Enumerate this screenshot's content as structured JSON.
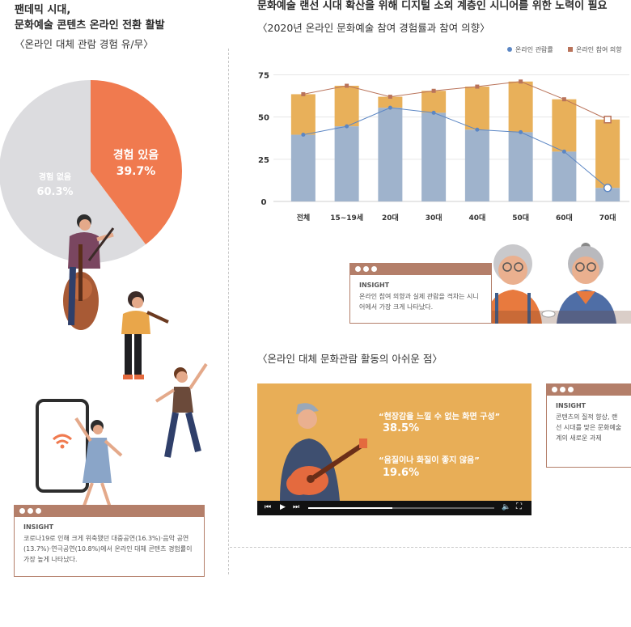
{
  "left": {
    "title_line1": "팬데믹 시대,",
    "title_line2": "문화예술 콘텐츠 온라인 전환 활발",
    "subtitle": "〈온라인 대체 관람 경험 유/무〉",
    "insight": {
      "heading": "INSIGHT",
      "body": "코로나19로 인해 크게 위축됐던 대중공연(16.3%)·음악 공연(13.7%)·연극공연(10.8%)에서 온라인 대체 콘텐츠 경험률이 가장 높게 나타났다."
    }
  },
  "right_top": {
    "title": "문화예술 랜선 시대 확산을 위해 디지털 소외 계층인 시니어를 위한 노력이 필요",
    "subtitle": "〈2020년 온라인 문화예술 참여 경험률과 참여 의향〉",
    "insight": {
      "heading": "INSIGHT",
      "body": "온라인 참여 의향과 실제 관람을 격차는 시니어에서 가장 크게 나타났다."
    }
  },
  "right_bottom": {
    "subtitle": "〈온라인 대체 문화관람 활동의 아쉬운 점〉",
    "quote1": "“현장감을 느낄 수 없는 화면 구성”",
    "value1": "38.5%",
    "quote2": "“음질이나 화질이 좋지 않음”",
    "value2": "19.6%",
    "insight": {
      "heading": "INSIGHT",
      "body": "콘텐츠의 질적 향상, 랜선 시대를 맞은 문화예술계의 새로운 과제"
    }
  },
  "colors": {
    "pie_yes": "#f07a4f",
    "pie_no": "#dcdcdf",
    "bar_bottom": "#9fb3cc",
    "bar_top": "#e8b05a",
    "line_viewing": "#5b86c4",
    "line_intent": "#b9735a",
    "accent": "#b47f6a",
    "video_bg": "#e8ae57"
  },
  "chart_data": [
    {
      "type": "pie",
      "slices": [
        {
          "label": "경험 있음",
          "value": 39.7,
          "text": "39.7%"
        },
        {
          "label": "경험 없음",
          "value": 60.3,
          "text": "60.3%"
        }
      ]
    },
    {
      "type": "bar",
      "categories": [
        "전체",
        "15~19세",
        "20대",
        "30대",
        "40대",
        "50대",
        "60대",
        "70대"
      ],
      "yticks": [
        0,
        25,
        50,
        75
      ],
      "ylim": [
        0,
        80
      ],
      "series": [
        {
          "name": "온라인 관람률",
          "values": [
            39.5,
            44.5,
            55.5,
            52.5,
            42.5,
            41.0,
            29.5,
            8.0
          ]
        },
        {
          "name": "온라인 참여 의향",
          "values": [
            63.5,
            68.5,
            62.0,
            65.5,
            68.0,
            71.0,
            60.5,
            48.5
          ]
        }
      ]
    }
  ]
}
